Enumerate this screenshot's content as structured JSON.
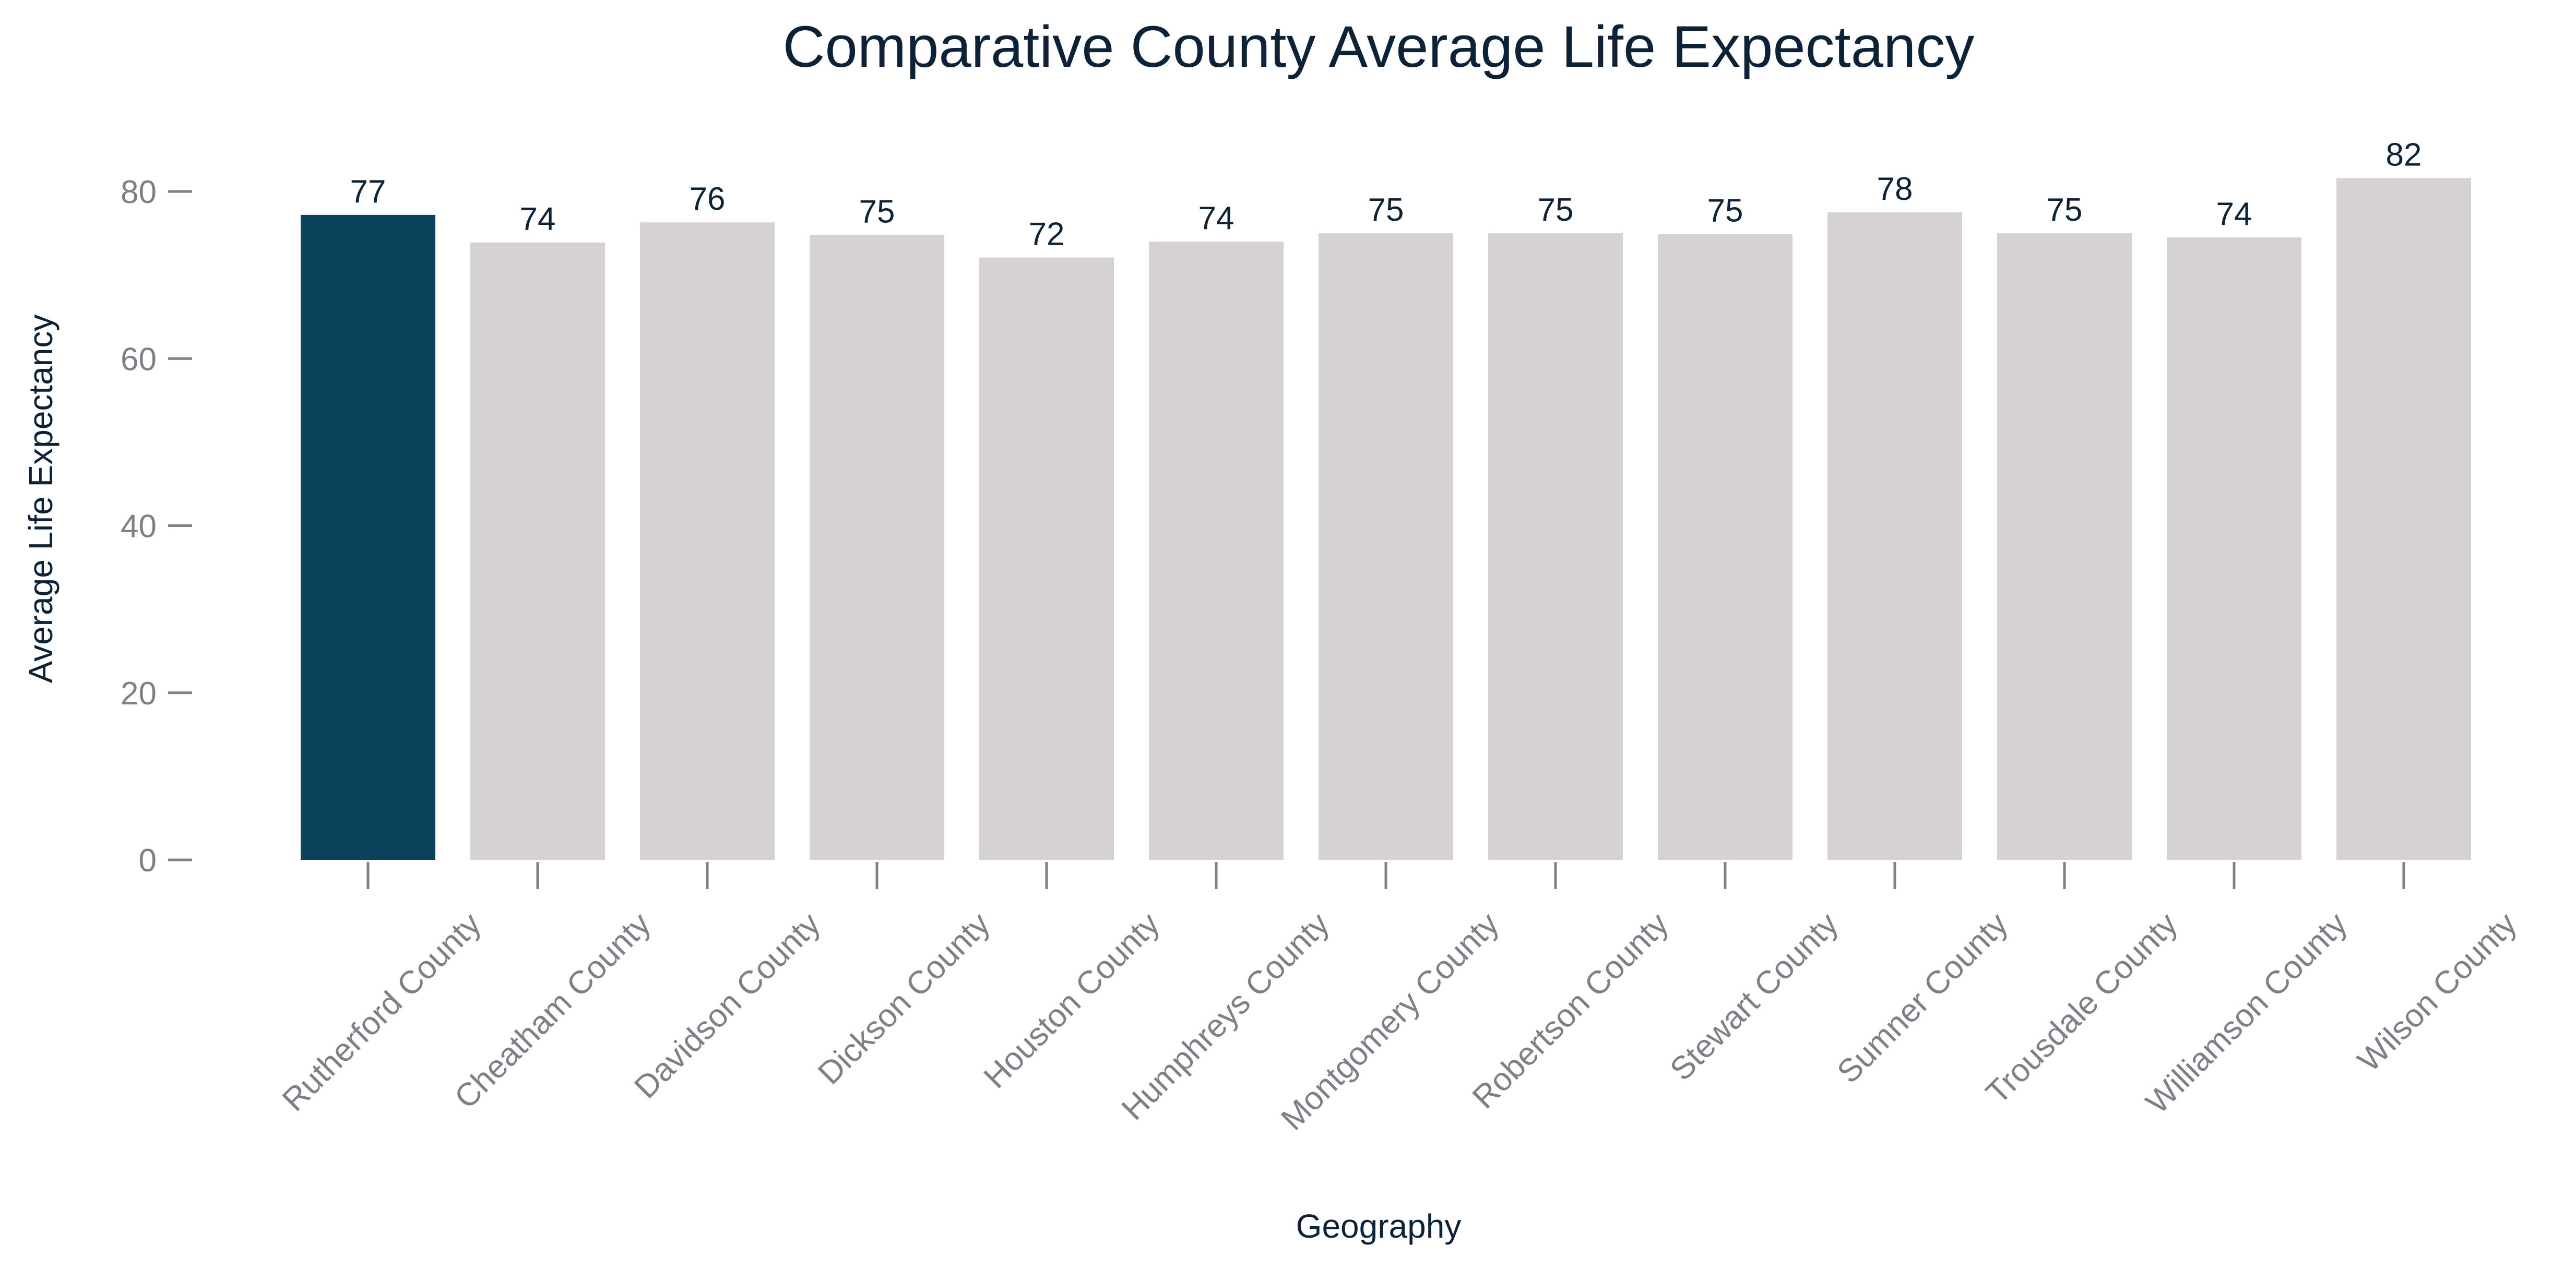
{
  "chart_data": {
    "type": "bar",
    "title": "Comparative County Average Life Expectancy",
    "xlabel": "Geography",
    "ylabel": "Average Life Expectancy",
    "categories": [
      "Rutherford County",
      "Cheatham County",
      "Davidson County",
      "Dickson County",
      "Houston County",
      "Humphreys County",
      "Montgomery County",
      "Robertson County",
      "Stewart County",
      "Sumner County",
      "Trousdale County",
      "Williamson County",
      "Wilson County"
    ],
    "values": [
      77.2,
      73.9,
      76.3,
      74.8,
      72.1,
      74.0,
      75.0,
      75.0,
      74.9,
      77.5,
      75.0,
      74.5,
      81.6
    ],
    "value_labels": [
      "77",
      "74",
      "76",
      "75",
      "72",
      "74",
      "75",
      "75",
      "75",
      "78",
      "75",
      "74",
      "82"
    ],
    "yticks": [
      0,
      20,
      40,
      60,
      80
    ],
    "ytick_labels": [
      "0",
      "20",
      "40",
      "60",
      "80"
    ],
    "ylim": [
      0,
      84
    ],
    "grid": false,
    "legend": "none",
    "colors": {
      "highlight": "#0a425c",
      "bar": "#d6d1d3",
      "axis": "#7f7f87",
      "text": "#0d2236"
    },
    "highlight_index": 0
  }
}
